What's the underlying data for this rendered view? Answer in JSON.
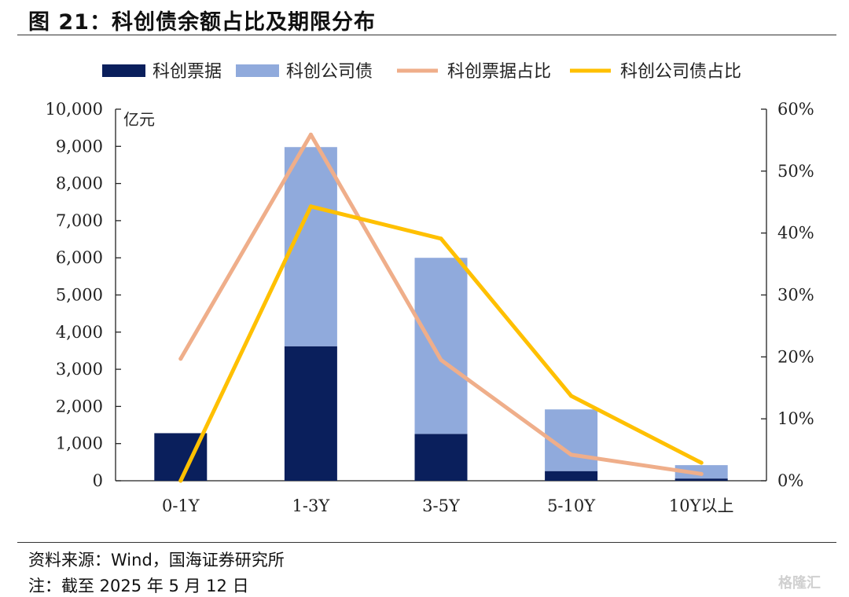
{
  "figure": {
    "title": "图 21：科创债余额占比及期限分布",
    "source": "资料来源：Wind，国海证券研究所",
    "note": "注：截至 2025 年 5 月 12 日",
    "watermark": "格隆汇"
  },
  "chart_data": {
    "type": "bar",
    "stacked": true,
    "categories": [
      "0-1Y",
      "1-3Y",
      "3-5Y",
      "5-10Y",
      "10Y以上"
    ],
    "y_unit_label": "亿元",
    "ylim": [
      0,
      10000
    ],
    "y_ticks": [
      "0",
      "1,000",
      "2,000",
      "3,000",
      "4,000",
      "5,000",
      "6,000",
      "7,000",
      "8,000",
      "9,000",
      "10,000"
    ],
    "y2lim": [
      0,
      60
    ],
    "y2_ticks": [
      "0%",
      "10%",
      "20%",
      "30%",
      "40%",
      "50%",
      "60%"
    ],
    "legend_position": "top",
    "grid": false,
    "series": [
      {
        "name": "科创票据",
        "kind": "bar",
        "axis": "left",
        "color": "#0a1f5c",
        "values": [
          1280,
          3620,
          1260,
          260,
          60
        ]
      },
      {
        "name": "科创公司债",
        "kind": "bar",
        "axis": "left",
        "color": "#90aadc",
        "values": [
          0,
          5360,
          4740,
          1660,
          360
        ]
      },
      {
        "name": "科创票据占比",
        "kind": "line",
        "axis": "right",
        "color": "#efae8a",
        "values": [
          19.7,
          55.9,
          19.5,
          4.2,
          1.1
        ]
      },
      {
        "name": "科创公司债占比",
        "kind": "line",
        "axis": "right",
        "color": "#ffc000",
        "values": [
          0,
          44.3,
          39.1,
          13.7,
          2.9
        ]
      }
    ]
  }
}
